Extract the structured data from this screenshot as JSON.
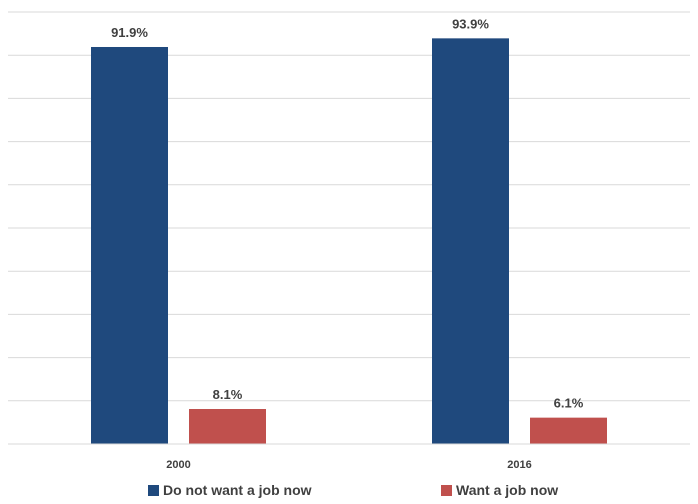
{
  "chart_data": {
    "type": "bar",
    "categories": [
      "2000",
      "2016"
    ],
    "series": [
      {
        "name": "Do not want a job now",
        "values": [
          91.9,
          93.9
        ],
        "labels": [
          "91.9%",
          "93.9%"
        ],
        "color": "#1f497d"
      },
      {
        "name": "Want a job now",
        "values": [
          8.1,
          6.1
        ],
        "labels": [
          "8.1%",
          "6.1%"
        ],
        "color": "#c0504d"
      }
    ],
    "ylim": [
      0,
      100
    ],
    "grid": true,
    "legend": "bottom",
    "title": "",
    "xlabel": "",
    "ylabel": ""
  }
}
